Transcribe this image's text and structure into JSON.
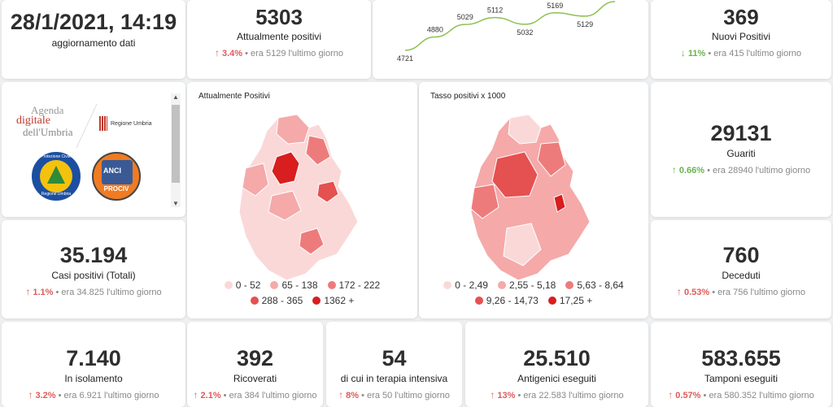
{
  "update": {
    "datetime": "28/1/2021, 14:19",
    "label": "aggiornamento dati"
  },
  "attualmente_positivi": {
    "value": "5303",
    "label": "Attualmente positivi",
    "pct": "3.4%",
    "prev": "era 5129 l'ultimo giorno"
  },
  "trend_chart": {
    "points": [
      "4721",
      "4880",
      "5029",
      "5112",
      "5032",
      "5169",
      "5129",
      "5303"
    ],
    "values": [
      4721,
      4880,
      5029,
      5112,
      5032,
      5169,
      5129,
      5303
    ],
    "color": "#8cc152"
  },
  "nuovi_positivi": {
    "value": "369",
    "label": "Nuovi Positivi",
    "pct": "11%",
    "prev": "era 415 l'ultimo giorno"
  },
  "logos": {
    "agenda_line1": "Agenda",
    "agenda_line2": "digitale",
    "agenda_line3": "dell'Umbria",
    "regione": "Regione Umbria",
    "protezione": "Protezione Civile",
    "protezione_sub": "Regione Umbria",
    "anci": "ANCI",
    "anci_sub": "PROCIV"
  },
  "map1": {
    "title": "Attualmente Positivi",
    "legend": [
      "0 - 52",
      "65 - 138",
      "172 - 222",
      "288 - 365",
      "1362 +"
    ],
    "colors": [
      "#fbd8d8",
      "#f5a9a9",
      "#ee7b7b",
      "#e55050",
      "#d81e1e"
    ]
  },
  "map2": {
    "title": "Tasso positivi x 1000",
    "legend": [
      "0 - 2,49",
      "2,55 - 5,18",
      "5,63 - 8,64",
      "9,26 - 14,73",
      "17,25 +"
    ],
    "colors": [
      "#fbd8d8",
      "#f5a9a9",
      "#ee7b7b",
      "#e55050",
      "#d81e1e"
    ]
  },
  "guariti": {
    "value": "29131",
    "label": "Guariti",
    "pct": "0.66%",
    "prev": "era 28940 l'ultimo giorno"
  },
  "casi": {
    "value": "35.194",
    "label": "Casi positivi (Totali)",
    "pct": "1.1%",
    "prev": "era 34.825 l'ultimo giorno"
  },
  "deceduti": {
    "value": "760",
    "label": "Deceduti",
    "pct": "0.53%",
    "prev": "era 756 l'ultimo giorno"
  },
  "isolamento": {
    "value": "7.140",
    "label": "In isolamento",
    "pct": "3.2%",
    "prev": "era 6.921 l'ultimo giorno"
  },
  "ricoverati": {
    "value": "392",
    "label": "Ricoverati",
    "pct": "2.1%",
    "prev": "era 384 l'ultimo giorno"
  },
  "terapia": {
    "value": "54",
    "label": "di cui in terapia intensiva",
    "pct": "8%",
    "prev": "era 50 l'ultimo giorno"
  },
  "antigenici": {
    "value": "25.510",
    "label": "Antigenici eseguiti",
    "pct": "13%",
    "prev": "era 22.583 l'ultimo giorno"
  },
  "tamponi": {
    "value": "583.655",
    "label": "Tamponi eseguiti",
    "pct": "0.57%",
    "prev": "era 580.352 l'ultimo giorno"
  },
  "icons": {
    "up": "arrow-up-icon",
    "down": "arrow-down-icon"
  }
}
